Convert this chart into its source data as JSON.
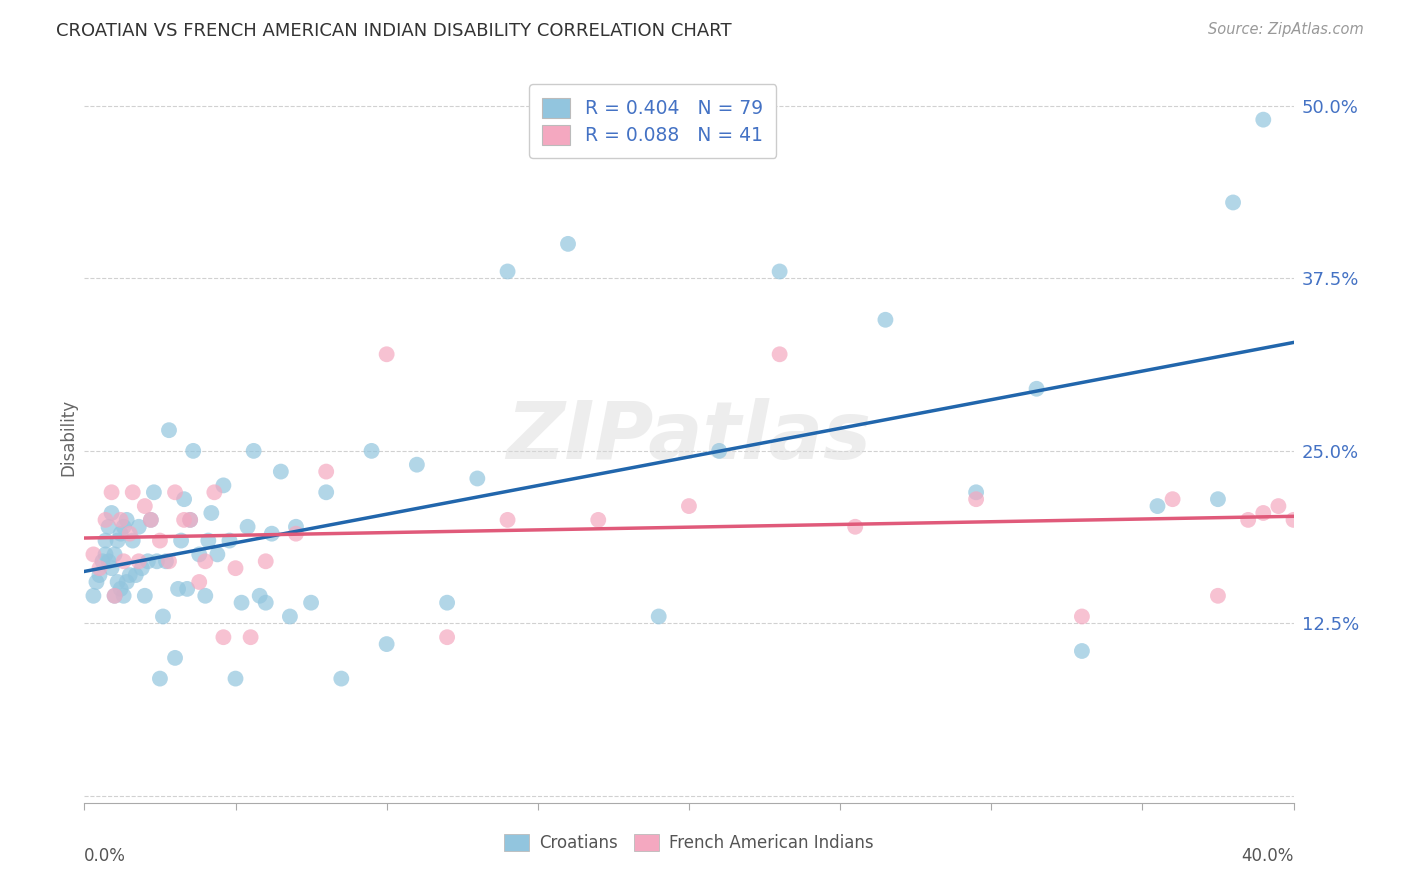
{
  "title": "CROATIAN VS FRENCH AMERICAN INDIAN DISABILITY CORRELATION CHART",
  "source": "Source: ZipAtlas.com",
  "ylabel": "Disability",
  "xlim": [
    0.0,
    0.4
  ],
  "ylim": [
    -0.005,
    0.525
  ],
  "yticks": [
    0.0,
    0.125,
    0.25,
    0.375,
    0.5
  ],
  "ytick_labels": [
    "",
    "12.5%",
    "25.0%",
    "37.5%",
    "50.0%"
  ],
  "xticks": [
    0.0,
    0.05,
    0.1,
    0.15,
    0.2,
    0.25,
    0.3,
    0.35,
    0.4
  ],
  "r_croatian": 0.404,
  "n_croatian": 79,
  "r_french": 0.088,
  "n_french": 41,
  "color_croatian": "#92c5de",
  "color_french": "#f4a8c0",
  "line_color_croatian": "#2166ac",
  "line_color_french": "#e05a7a",
  "watermark": "ZIPatlas",
  "legend_label_croatian": "Croatians",
  "legend_label_french": "French American Indians",
  "grid_color": "#cccccc",
  "title_color": "#333333",
  "tick_color": "#4472c4",
  "croatian_x": [
    0.003,
    0.004,
    0.005,
    0.006,
    0.007,
    0.007,
    0.008,
    0.008,
    0.009,
    0.009,
    0.01,
    0.01,
    0.011,
    0.011,
    0.012,
    0.012,
    0.013,
    0.013,
    0.014,
    0.014,
    0.015,
    0.016,
    0.017,
    0.018,
    0.019,
    0.02,
    0.021,
    0.022,
    0.023,
    0.024,
    0.025,
    0.026,
    0.027,
    0.028,
    0.03,
    0.031,
    0.032,
    0.033,
    0.034,
    0.035,
    0.036,
    0.038,
    0.04,
    0.041,
    0.042,
    0.044,
    0.046,
    0.048,
    0.05,
    0.052,
    0.054,
    0.056,
    0.058,
    0.06,
    0.062,
    0.065,
    0.068,
    0.07,
    0.075,
    0.08,
    0.085,
    0.095,
    0.1,
    0.11,
    0.12,
    0.13,
    0.14,
    0.16,
    0.19,
    0.21,
    0.23,
    0.265,
    0.295,
    0.315,
    0.33,
    0.355,
    0.375,
    0.38,
    0.39
  ],
  "croatian_y": [
    0.145,
    0.155,
    0.16,
    0.17,
    0.175,
    0.185,
    0.17,
    0.195,
    0.165,
    0.205,
    0.145,
    0.175,
    0.155,
    0.185,
    0.15,
    0.19,
    0.145,
    0.195,
    0.155,
    0.2,
    0.16,
    0.185,
    0.16,
    0.195,
    0.165,
    0.145,
    0.17,
    0.2,
    0.22,
    0.17,
    0.085,
    0.13,
    0.17,
    0.265,
    0.1,
    0.15,
    0.185,
    0.215,
    0.15,
    0.2,
    0.25,
    0.175,
    0.145,
    0.185,
    0.205,
    0.175,
    0.225,
    0.185,
    0.085,
    0.14,
    0.195,
    0.25,
    0.145,
    0.14,
    0.19,
    0.235,
    0.13,
    0.195,
    0.14,
    0.22,
    0.085,
    0.25,
    0.11,
    0.24,
    0.14,
    0.23,
    0.38,
    0.4,
    0.13,
    0.25,
    0.38,
    0.345,
    0.22,
    0.295,
    0.105,
    0.21,
    0.215,
    0.43,
    0.49
  ],
  "french_x": [
    0.003,
    0.005,
    0.007,
    0.009,
    0.01,
    0.012,
    0.013,
    0.015,
    0.016,
    0.018,
    0.02,
    0.022,
    0.025,
    0.028,
    0.03,
    0.033,
    0.035,
    0.038,
    0.04,
    0.043,
    0.046,
    0.05,
    0.055,
    0.06,
    0.07,
    0.08,
    0.1,
    0.12,
    0.14,
    0.17,
    0.2,
    0.23,
    0.255,
    0.295,
    0.33,
    0.36,
    0.375,
    0.385,
    0.39,
    0.395,
    0.4
  ],
  "french_y": [
    0.175,
    0.165,
    0.2,
    0.22,
    0.145,
    0.2,
    0.17,
    0.19,
    0.22,
    0.17,
    0.21,
    0.2,
    0.185,
    0.17,
    0.22,
    0.2,
    0.2,
    0.155,
    0.17,
    0.22,
    0.115,
    0.165,
    0.115,
    0.17,
    0.19,
    0.235,
    0.32,
    0.115,
    0.2,
    0.2,
    0.21,
    0.32,
    0.195,
    0.215,
    0.13,
    0.215,
    0.145,
    0.2,
    0.205,
    0.21,
    0.2
  ]
}
